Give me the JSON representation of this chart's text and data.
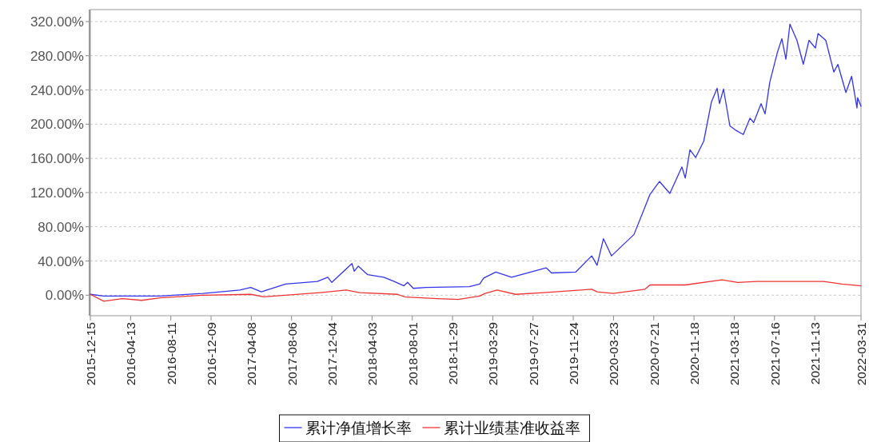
{
  "chart_data": {
    "type": "line",
    "xlim": [
      "2015-12-15",
      "2022-03-31"
    ],
    "xticks": [
      "2015-12-15",
      "2016-04-13",
      "2016-08-11",
      "2016-12-09",
      "2017-04-08",
      "2017-08-06",
      "2017-12-04",
      "2018-04-03",
      "2018-08-01",
      "2018-11-29",
      "2019-03-29",
      "2019-07-27",
      "2019-11-24",
      "2020-03-23",
      "2020-07-21",
      "2020-11-18",
      "2021-03-18",
      "2021-07-16",
      "2021-11-13",
      "2022-03-31"
    ],
    "ylim": [
      -24,
      334
    ],
    "yticks": [
      {
        "value": 0,
        "label": "0.00%"
      },
      {
        "value": 40,
        "label": "40.00%"
      },
      {
        "value": 80,
        "label": "80.00%"
      },
      {
        "value": 120,
        "label": "120.00%"
      },
      {
        "value": 160,
        "label": "160.00%"
      },
      {
        "value": 200,
        "label": "200.00%"
      },
      {
        "value": 240,
        "label": "240.00%"
      },
      {
        "value": 280,
        "label": "280.00%"
      },
      {
        "value": 320,
        "label": "320.00%"
      }
    ],
    "grid": "y",
    "legend": "bottom",
    "marker": "none",
    "line_style": "solid",
    "series": [
      {
        "name": "累计净值增长率",
        "color": "#3333ee",
        "x": [
          "2015-12-15",
          "2016-01-24",
          "2016-07-10",
          "2016-11-13",
          "2017-03-05",
          "2017-04-06",
          "2017-05-08",
          "2017-07-19",
          "2017-10-22",
          "2017-11-22",
          "2017-12-04",
          "2018-02-02",
          "2018-02-09",
          "2018-02-21",
          "2018-03-21",
          "2018-05-08",
          "2018-06-08",
          "2018-07-07",
          "2018-07-18",
          "2018-08-04",
          "2018-09-11",
          "2019-01-18",
          "2019-02-18",
          "2019-03-02",
          "2019-04-07",
          "2019-05-24",
          "2019-09-04",
          "2019-09-20",
          "2019-12-01",
          "2020-01-18",
          "2020-02-03",
          "2020-02-22",
          "2020-03-17",
          "2020-05-23",
          "2020-07-10",
          "2020-08-07",
          "2020-09-07",
          "2020-10-13",
          "2020-10-23",
          "2020-11-06",
          "2020-11-23",
          "2020-12-17",
          "2021-01-09",
          "2021-01-26",
          "2021-02-02",
          "2021-02-14",
          "2021-03-05",
          "2021-03-22",
          "2021-04-14",
          "2021-05-04",
          "2021-05-15",
          "2021-06-06",
          "2021-06-18",
          "2021-07-02",
          "2021-07-24",
          "2021-08-07",
          "2021-08-19",
          "2021-08-31",
          "2021-09-21",
          "2021-10-10",
          "2021-10-27",
          "2021-11-15",
          "2021-11-23",
          "2021-12-16",
          "2022-01-09",
          "2022-01-21",
          "2022-02-14",
          "2022-03-03",
          "2022-03-19",
          "2022-03-21",
          "2022-03-31"
        ],
        "values": [
          1,
          -1,
          -1,
          2,
          6,
          9,
          4,
          13,
          16,
          21,
          15,
          37,
          28,
          34,
          24,
          21,
          16,
          11,
          15,
          8,
          9,
          10,
          13,
          20,
          27,
          21,
          32,
          26,
          27,
          46,
          35,
          66,
          46,
          71,
          118,
          133,
          119,
          150,
          137,
          170,
          161,
          180,
          226,
          242,
          224,
          241,
          198,
          193,
          188,
          207,
          202,
          224,
          212,
          249,
          283,
          300,
          276,
          317,
          298,
          270,
          298,
          289,
          306,
          298,
          261,
          270,
          237,
          256,
          219,
          231,
          221
        ]
      },
      {
        "name": "累计业绩基准收益率",
        "color": "#ee3333",
        "x": [
          "2015-12-15",
          "2016-01-24",
          "2016-03-19",
          "2016-05-16",
          "2016-07-10",
          "2016-11-13",
          "2017-04-06",
          "2017-05-15",
          "2017-10-30",
          "2018-01-16",
          "2018-02-25",
          "2018-06-18",
          "2018-07-09",
          "2018-10-15",
          "2018-12-16",
          "2019-02-18",
          "2019-03-06",
          "2019-04-11",
          "2019-06-05",
          "2019-08-28",
          "2020-01-18",
          "2020-02-03",
          "2020-03-22",
          "2020-06-25",
          "2020-07-10",
          "2020-10-23",
          "2021-02-09",
          "2021-03-29",
          "2021-05-25",
          "2021-12-09",
          "2022-02-02",
          "2022-03-31"
        ],
        "values": [
          1,
          -7,
          -4,
          -6,
          -3,
          0,
          1,
          -2,
          3,
          6,
          3,
          1,
          -2,
          -4,
          -5,
          -1,
          2,
          6,
          1,
          3,
          7,
          4,
          2,
          7,
          12,
          12,
          18,
          15,
          16,
          16,
          13,
          11
        ]
      }
    ]
  }
}
